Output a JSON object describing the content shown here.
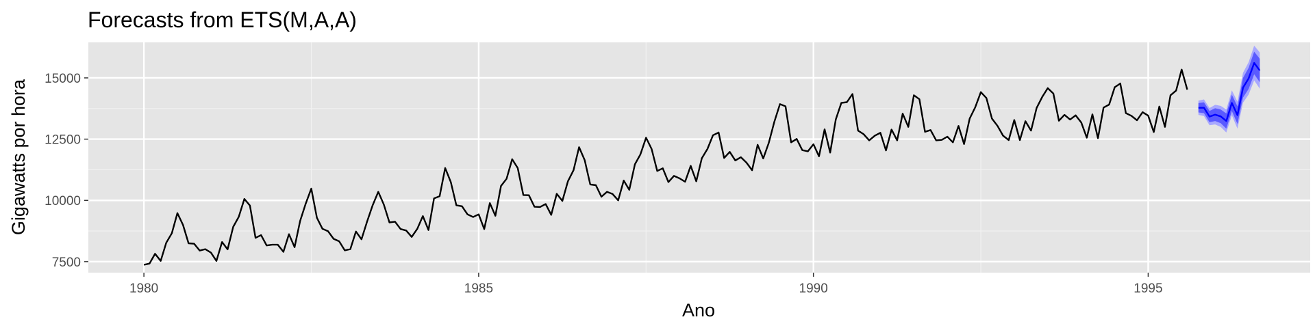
{
  "chart_data": {
    "type": "line",
    "title": "Forecasts from ETS(M,A,A)",
    "xlabel": "Ano",
    "ylabel": "Gigawatts por hora",
    "xlim": [
      1979.17,
      1997.42
    ],
    "ylim": [
      7050,
      16450
    ],
    "x_ticks": [
      1980,
      1985,
      1990,
      1995
    ],
    "x_tick_labels": [
      "1980",
      "1985",
      "1990",
      "1995"
    ],
    "y_ticks": [
      7500,
      10000,
      12500,
      15000
    ],
    "y_tick_labels": [
      "7500",
      "10000",
      "12500",
      "15000"
    ],
    "grid": true,
    "legend": "none",
    "colors": {
      "panel": "#e5e5e5",
      "grid_major": "#ffffff",
      "grid_minor": "#f2f2f2",
      "series": "#000000",
      "forecast": "#0000ff",
      "pi80": "#5a5aff",
      "pi95": "#a8a8ff",
      "tick_text": "#4d4d4d"
    },
    "series": [
      {
        "start": 1980.0,
        "frequency": 12,
        "values": [
          7370,
          7420,
          7820,
          7530,
          8270,
          8660,
          9480,
          9000,
          8250,
          8230,
          7950,
          8010,
          7870,
          7530,
          8300,
          8000,
          8920,
          9330,
          10060,
          9790,
          8470,
          8580,
          8160,
          8190,
          8190,
          7900,
          8620,
          8090,
          9160,
          9870,
          10480,
          9290,
          8840,
          8740,
          8430,
          8330,
          7960,
          8010,
          8730,
          8410,
          9140,
          9800,
          10350,
          9830,
          9100,
          9130,
          8830,
          8770,
          8510,
          8840,
          9360,
          8790,
          10080,
          10170,
          11320,
          10750,
          9800,
          9760,
          9430,
          9320,
          9430,
          8830,
          9890,
          9370,
          10590,
          10880,
          11680,
          11320,
          10220,
          10210,
          9740,
          9730,
          9850,
          9410,
          10270,
          9980,
          10780,
          11230,
          12170,
          11640,
          10650,
          10620,
          10150,
          10350,
          10260,
          10000,
          10810,
          10430,
          11470,
          11880,
          12560,
          12100,
          11200,
          11310,
          10750,
          11000,
          10900,
          10760,
          11410,
          10780,
          11720,
          12100,
          12660,
          12770,
          11730,
          11980,
          11630,
          11760,
          11540,
          11230,
          12270,
          11710,
          12350,
          13210,
          13930,
          13840,
          12370,
          12510,
          12050,
          12000,
          12290,
          11800,
          12900,
          11950,
          13300,
          13980,
          14010,
          14340,
          12850,
          12700,
          12450,
          12640,
          12760,
          12040,
          12890,
          12450,
          13540,
          13000,
          14290,
          14130,
          12800,
          12870,
          12450,
          12470,
          12600,
          12370,
          13040,
          12300,
          13340,
          13800,
          14420,
          14180,
          13340,
          13040,
          12640,
          12460,
          13280,
          12460,
          13230,
          12850,
          13770,
          14220,
          14580,
          14360,
          13250,
          13490,
          13300,
          13470,
          13180,
          12560,
          13510,
          12540,
          13790,
          13910,
          14620,
          14770,
          13560,
          13450,
          13270,
          13600,
          13460,
          12790,
          13830,
          13000,
          14290,
          14480,
          15340,
          14520
        ]
      }
    ],
    "forecast": {
      "start": 1995.75,
      "frequency": 12,
      "mean": [
        13780,
        13780,
        13420,
        13500,
        13430,
        13240,
        13980,
        13480,
        14600,
        14980,
        15610,
        15300
      ],
      "lo80": [
        13590,
        13560,
        13190,
        13240,
        13150,
        12930,
        13650,
        13120,
        14200,
        14550,
        15150,
        14820
      ],
      "hi80": [
        13970,
        14000,
        13650,
        13760,
        13710,
        13550,
        14310,
        13840,
        15000,
        15410,
        16070,
        15780
      ],
      "lo95": [
        13490,
        13440,
        13070,
        13100,
        13000,
        12770,
        13470,
        12930,
        13990,
        14320,
        14900,
        14560
      ],
      "hi95": [
        14070,
        14120,
        13770,
        13900,
        13860,
        13710,
        14490,
        14030,
        15210,
        15640,
        16320,
        16040
      ]
    }
  }
}
